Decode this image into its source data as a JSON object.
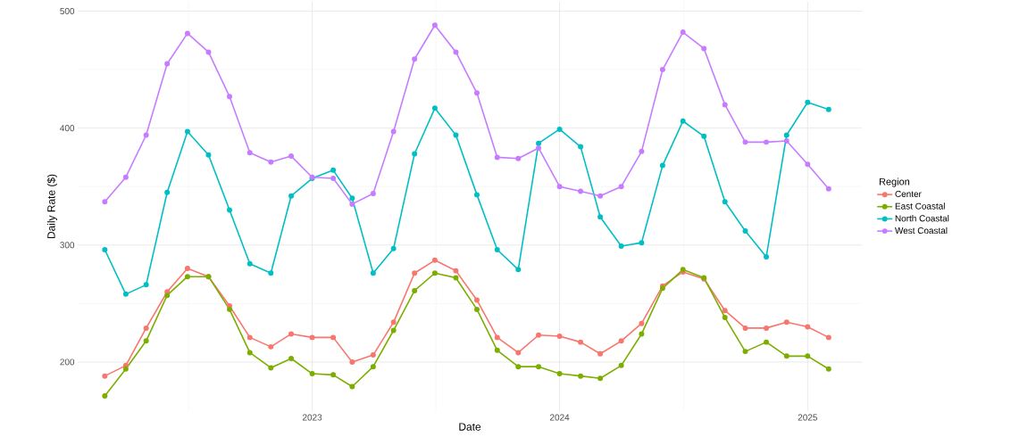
{
  "chart_data": {
    "type": "line",
    "xlabel": "Date",
    "ylabel": "Daily Rate ($)",
    "legend_title": "Region",
    "legend": "right",
    "grid": true,
    "marker": "circle",
    "line_style": "solid",
    "x": [
      "2022-03",
      "2022-04",
      "2022-05",
      "2022-06",
      "2022-07",
      "2022-08",
      "2022-09",
      "2022-10",
      "2022-11",
      "2022-12",
      "2023-01",
      "2023-02",
      "2023-03",
      "2023-04",
      "2023-05",
      "2023-06",
      "2023-07",
      "2023-08",
      "2023-09",
      "2023-10",
      "2023-11",
      "2023-12",
      "2024-01",
      "2024-02",
      "2024-03",
      "2024-04",
      "2024-05",
      "2024-06",
      "2024-07",
      "2024-08",
      "2024-09",
      "2024-10",
      "2024-11",
      "2024-12",
      "2025-01",
      "2025-02"
    ],
    "xlim": [
      "2022-01-20",
      "2025-03-22"
    ],
    "xticks": [
      {
        "value": "2023-01-01",
        "label": "2023"
      },
      {
        "value": "2024-01-01",
        "label": "2024"
      },
      {
        "value": "2025-01-01",
        "label": "2025"
      }
    ],
    "ylim": [
      158,
      508
    ],
    "yticks": [
      200,
      300,
      400,
      500
    ],
    "series": [
      {
        "name": "Center",
        "color": "#f8766d",
        "values": [
          188,
          197,
          229,
          260,
          280,
          273,
          248,
          221,
          213,
          224,
          221,
          221,
          200,
          206,
          234,
          276,
          287,
          278,
          253,
          221,
          208,
          223,
          222,
          217,
          207,
          218,
          233,
          265,
          277,
          271,
          244,
          229,
          229,
          234,
          230,
          221
        ]
      },
      {
        "name": "East Coastal",
        "color": "#7cae00",
        "values": [
          171,
          194,
          218,
          257,
          273,
          273,
          245,
          208,
          195,
          203,
          190,
          189,
          179,
          196,
          227,
          261,
          276,
          272,
          245,
          210,
          196,
          196,
          190,
          188,
          186,
          197,
          224,
          263,
          279,
          272,
          238,
          209,
          217,
          205,
          205,
          194
        ]
      },
      {
        "name": "North Coastal",
        "color": "#00bfc4",
        "values": [
          296,
          258,
          266,
          345,
          397,
          377,
          330,
          284,
          276,
          342,
          357,
          364,
          340,
          276,
          297,
          378,
          417,
          394,
          343,
          296,
          279,
          387,
          399,
          384,
          324,
          299,
          302,
          368,
          406,
          393,
          337,
          312,
          290,
          394,
          422,
          416
        ]
      },
      {
        "name": "West Coastal",
        "color": "#c77cff",
        "values": [
          337,
          358,
          394,
          455,
          481,
          465,
          427,
          379,
          371,
          376,
          358,
          357,
          335,
          344,
          397,
          459,
          488,
          465,
          430,
          375,
          374,
          383,
          350,
          346,
          342,
          350,
          380,
          450,
          482,
          468,
          420,
          388,
          388,
          389,
          369,
          348
        ]
      }
    ]
  }
}
